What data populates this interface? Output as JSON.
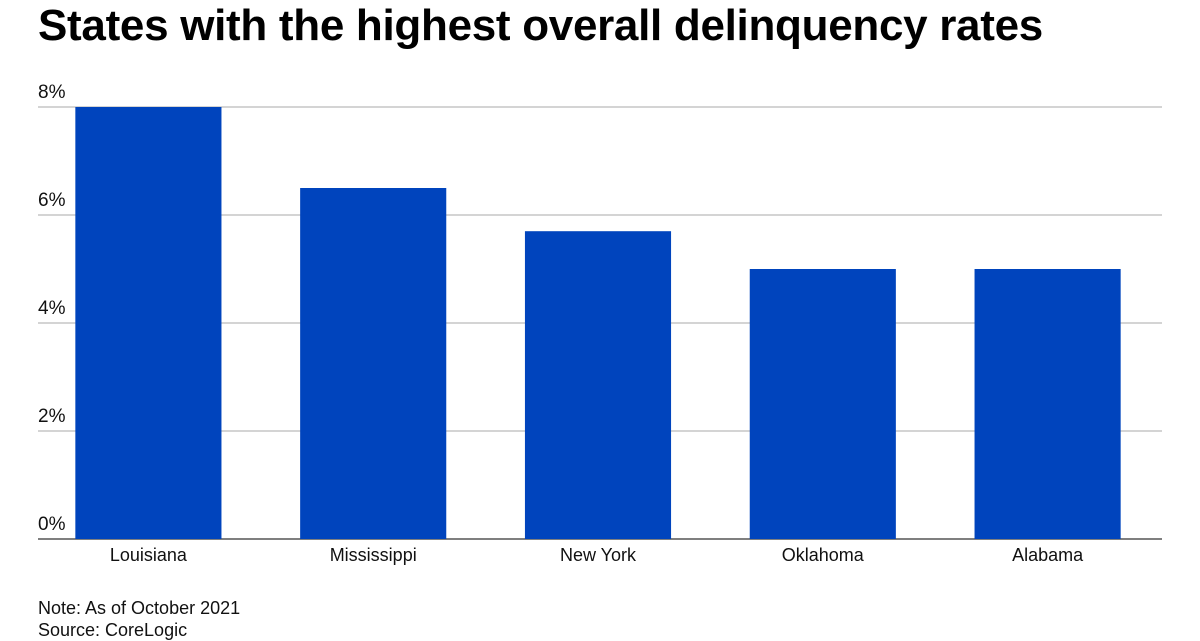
{
  "title": "States with the highest overall delinquency rates",
  "note": "Note: As of October 2021",
  "source": "Source: CoreLogic",
  "colors": {
    "bar": "#0044bd",
    "grid": "#a9a9a9",
    "axis": "#555555",
    "text": "#111111"
  },
  "chart_data": {
    "type": "bar",
    "categories": [
      "Louisiana",
      "Mississippi",
      "New York",
      "Oklahoma",
      "Alabama"
    ],
    "values": [
      8.0,
      6.5,
      5.7,
      5.0,
      5.0
    ],
    "ylim": [
      0,
      8
    ],
    "yticks": [
      0,
      2,
      4,
      6,
      8
    ],
    "ytick_labels": [
      "0%",
      "2%",
      "4%",
      "6%",
      "8%"
    ],
    "grid": true,
    "legend": "none"
  }
}
